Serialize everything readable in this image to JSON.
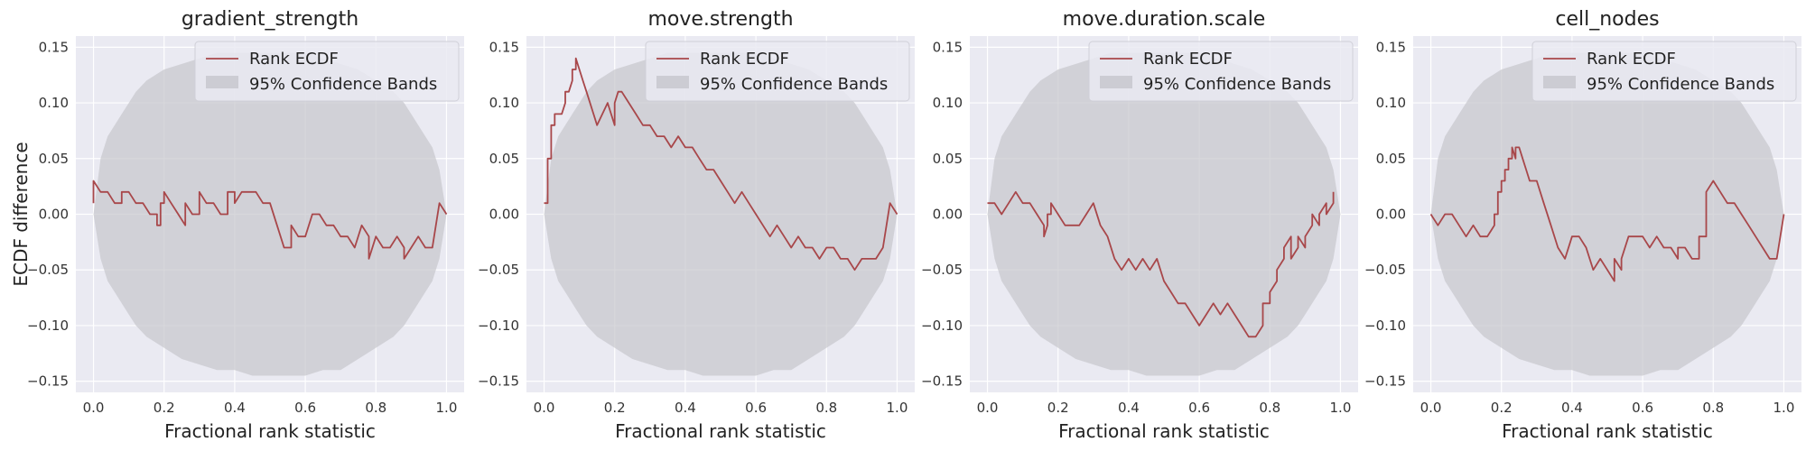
{
  "colors": {
    "panel_bg": "#eaeaf2",
    "grid": "#ffffff",
    "band": "#c6c6cc",
    "line": "#a8474a",
    "legend_bg": "#eaeaf2"
  },
  "legend": {
    "line_label": "Rank ECDF",
    "band_label": "95% Confidence Bands"
  },
  "chart_data": [
    {
      "type": "line",
      "title": "gradient_strength",
      "xlabel": "Fractional rank statistic",
      "ylabel": "ECDF difference",
      "xlim": [
        -0.05,
        1.05
      ],
      "ylim": [
        -0.16,
        0.16
      ],
      "xticks": [
        "0.0",
        "0.2",
        "0.4",
        "0.6",
        "0.8",
        "1.0"
      ],
      "yticks": [
        "−0.15",
        "−0.10",
        "−0.05",
        "0.00",
        "0.05",
        "0.10",
        "0.15"
      ],
      "grid": true,
      "legend_position": "upper-right",
      "series": [
        {
          "name": "Rank ECDF",
          "x": [
            0.0,
            0.0,
            0.02,
            0.04,
            0.06,
            0.08,
            0.08,
            0.1,
            0.12,
            0.14,
            0.16,
            0.18,
            0.18,
            0.19,
            0.19,
            0.2,
            0.2,
            0.22,
            0.24,
            0.26,
            0.26,
            0.28,
            0.3,
            0.3,
            0.32,
            0.34,
            0.36,
            0.38,
            0.38,
            0.4,
            0.4,
            0.42,
            0.44,
            0.46,
            0.48,
            0.5,
            0.52,
            0.54,
            0.56,
            0.56,
            0.58,
            0.6,
            0.62,
            0.64,
            0.66,
            0.68,
            0.68,
            0.7,
            0.72,
            0.74,
            0.76,
            0.78,
            0.78,
            0.8,
            0.82,
            0.84,
            0.86,
            0.88,
            0.88,
            0.9,
            0.92,
            0.94,
            0.96,
            0.96,
            0.98,
            1.0
          ],
          "y": [
            0.01,
            0.03,
            0.02,
            0.02,
            0.01,
            0.01,
            0.02,
            0.02,
            0.01,
            0.01,
            0.0,
            0.0,
            -0.01,
            -0.01,
            0.01,
            0.01,
            0.02,
            0.01,
            0.0,
            -0.01,
            0.01,
            0.0,
            0.0,
            0.02,
            0.01,
            0.01,
            0.0,
            0.0,
            0.02,
            0.02,
            0.01,
            0.02,
            0.02,
            0.02,
            0.01,
            0.01,
            -0.01,
            -0.03,
            -0.03,
            -0.01,
            -0.02,
            -0.02,
            0.0,
            0.0,
            -0.01,
            -0.01,
            -0.01,
            -0.02,
            -0.02,
            -0.03,
            -0.01,
            -0.02,
            -0.04,
            -0.02,
            -0.03,
            -0.03,
            -0.02,
            -0.03,
            -0.04,
            -0.03,
            -0.02,
            -0.03,
            -0.03,
            -0.03,
            0.01,
            0.0
          ]
        }
      ],
      "band": {
        "name": "95% Confidence Bands",
        "x": [
          0.0,
          0.02,
          0.04,
          0.06,
          0.08,
          0.1,
          0.12,
          0.15,
          0.2,
          0.25,
          0.3,
          0.35,
          0.4,
          0.45,
          0.5,
          0.55,
          0.6,
          0.65,
          0.7,
          0.75,
          0.8,
          0.85,
          0.88,
          0.9,
          0.92,
          0.94,
          0.96,
          0.98,
          1.0
        ],
        "upper": [
          0.0,
          0.05,
          0.07,
          0.08,
          0.09,
          0.1,
          0.11,
          0.12,
          0.13,
          0.135,
          0.14,
          0.145,
          0.145,
          0.145,
          0.145,
          0.145,
          0.145,
          0.14,
          0.135,
          0.13,
          0.12,
          0.11,
          0.1,
          0.09,
          0.08,
          0.07,
          0.06,
          0.04,
          0.0
        ],
        "lower": [
          0.0,
          -0.04,
          -0.06,
          -0.07,
          -0.08,
          -0.09,
          -0.1,
          -0.11,
          -0.12,
          -0.13,
          -0.135,
          -0.14,
          -0.14,
          -0.145,
          -0.145,
          -0.145,
          -0.145,
          -0.14,
          -0.14,
          -0.13,
          -0.12,
          -0.11,
          -0.1,
          -0.09,
          -0.08,
          -0.07,
          -0.06,
          -0.04,
          0.0
        ]
      }
    },
    {
      "type": "line",
      "title": "move.strength",
      "xlabel": "Fractional rank statistic",
      "ylabel": "",
      "xlim": [
        -0.05,
        1.05
      ],
      "ylim": [
        -0.16,
        0.16
      ],
      "xticks": [
        "0.0",
        "0.2",
        "0.4",
        "0.6",
        "0.8",
        "1.0"
      ],
      "yticks": [
        "−0.15",
        "−0.10",
        "−0.05",
        "0.00",
        "0.05",
        "0.10",
        "0.15"
      ],
      "grid": true,
      "legend_position": "upper-right",
      "series": [
        {
          "name": "Rank ECDF",
          "x": [
            0.0,
            0.01,
            0.01,
            0.02,
            0.02,
            0.03,
            0.03,
            0.04,
            0.04,
            0.05,
            0.06,
            0.06,
            0.07,
            0.08,
            0.08,
            0.09,
            0.09,
            0.1,
            0.11,
            0.12,
            0.15,
            0.18,
            0.2,
            0.2,
            0.21,
            0.22,
            0.24,
            0.26,
            0.28,
            0.3,
            0.32,
            0.34,
            0.36,
            0.38,
            0.4,
            0.42,
            0.44,
            0.46,
            0.48,
            0.5,
            0.52,
            0.54,
            0.56,
            0.58,
            0.6,
            0.62,
            0.64,
            0.66,
            0.68,
            0.7,
            0.72,
            0.74,
            0.76,
            0.78,
            0.8,
            0.82,
            0.84,
            0.86,
            0.88,
            0.9,
            0.92,
            0.94,
            0.96,
            0.98,
            1.0
          ],
          "y": [
            0.01,
            0.01,
            0.05,
            0.05,
            0.08,
            0.08,
            0.09,
            0.09,
            0.09,
            0.09,
            0.1,
            0.11,
            0.11,
            0.12,
            0.13,
            0.13,
            0.14,
            0.13,
            0.12,
            0.11,
            0.08,
            0.1,
            0.08,
            0.1,
            0.11,
            0.11,
            0.1,
            0.09,
            0.08,
            0.08,
            0.07,
            0.07,
            0.06,
            0.07,
            0.06,
            0.06,
            0.05,
            0.04,
            0.04,
            0.03,
            0.02,
            0.01,
            0.02,
            0.01,
            0.0,
            -0.01,
            -0.02,
            -0.01,
            -0.02,
            -0.03,
            -0.02,
            -0.03,
            -0.03,
            -0.04,
            -0.03,
            -0.03,
            -0.04,
            -0.04,
            -0.05,
            -0.04,
            -0.04,
            -0.04,
            -0.03,
            0.01,
            0.0
          ]
        }
      ],
      "band": {
        "name": "95% Confidence Bands",
        "x": [
          0.0,
          0.02,
          0.04,
          0.06,
          0.08,
          0.1,
          0.12,
          0.15,
          0.2,
          0.25,
          0.3,
          0.35,
          0.4,
          0.45,
          0.5,
          0.55,
          0.6,
          0.65,
          0.7,
          0.75,
          0.8,
          0.85,
          0.88,
          0.9,
          0.92,
          0.94,
          0.96,
          0.98,
          1.0
        ],
        "upper": [
          0.0,
          0.05,
          0.07,
          0.08,
          0.09,
          0.1,
          0.11,
          0.12,
          0.13,
          0.135,
          0.14,
          0.145,
          0.145,
          0.145,
          0.145,
          0.145,
          0.145,
          0.14,
          0.135,
          0.13,
          0.12,
          0.11,
          0.1,
          0.09,
          0.08,
          0.07,
          0.06,
          0.04,
          0.0
        ],
        "lower": [
          0.0,
          -0.04,
          -0.06,
          -0.07,
          -0.08,
          -0.09,
          -0.1,
          -0.11,
          -0.12,
          -0.13,
          -0.135,
          -0.14,
          -0.14,
          -0.145,
          -0.145,
          -0.145,
          -0.145,
          -0.14,
          -0.14,
          -0.13,
          -0.12,
          -0.11,
          -0.1,
          -0.09,
          -0.08,
          -0.07,
          -0.06,
          -0.04,
          0.0
        ]
      }
    },
    {
      "type": "line",
      "title": "move.duration.scale",
      "xlabel": "Fractional rank statistic",
      "ylabel": "",
      "xlim": [
        -0.05,
        1.05
      ],
      "ylim": [
        -0.16,
        0.16
      ],
      "xticks": [
        "0.0",
        "0.2",
        "0.4",
        "0.6",
        "0.8",
        "1.0"
      ],
      "yticks": [
        "−0.15",
        "−0.10",
        "−0.05",
        "0.00",
        "0.05",
        "0.10",
        "0.15"
      ],
      "grid": true,
      "legend_position": "upper-right",
      "series": [
        {
          "name": "Rank ECDF",
          "x": [
            0.0,
            0.02,
            0.04,
            0.06,
            0.06,
            0.08,
            0.1,
            0.12,
            0.14,
            0.16,
            0.16,
            0.17,
            0.17,
            0.18,
            0.18,
            0.2,
            0.22,
            0.24,
            0.26,
            0.28,
            0.3,
            0.32,
            0.34,
            0.36,
            0.38,
            0.4,
            0.42,
            0.44,
            0.46,
            0.48,
            0.5,
            0.52,
            0.54,
            0.56,
            0.58,
            0.6,
            0.62,
            0.64,
            0.66,
            0.68,
            0.7,
            0.72,
            0.74,
            0.76,
            0.78,
            0.78,
            0.8,
            0.8,
            0.82,
            0.82,
            0.84,
            0.84,
            0.86,
            0.86,
            0.88,
            0.88,
            0.9,
            0.9,
            0.92,
            0.92,
            0.94,
            0.94,
            0.96,
            0.96,
            0.98,
            0.98
          ],
          "y": [
            0.01,
            0.01,
            0.0,
            0.01,
            0.01,
            0.02,
            0.01,
            0.01,
            0.0,
            -0.01,
            -0.02,
            -0.01,
            0.0,
            0.0,
            0.01,
            0.0,
            -0.01,
            -0.01,
            -0.01,
            0.0,
            0.01,
            -0.01,
            -0.02,
            -0.04,
            -0.05,
            -0.04,
            -0.05,
            -0.04,
            -0.05,
            -0.04,
            -0.06,
            -0.07,
            -0.08,
            -0.08,
            -0.09,
            -0.1,
            -0.09,
            -0.08,
            -0.09,
            -0.08,
            -0.09,
            -0.1,
            -0.11,
            -0.11,
            -0.1,
            -0.08,
            -0.08,
            -0.07,
            -0.06,
            -0.05,
            -0.04,
            -0.03,
            -0.02,
            -0.04,
            -0.03,
            -0.02,
            -0.03,
            -0.02,
            -0.01,
            0.0,
            -0.01,
            0.0,
            0.01,
            0.0,
            0.01,
            0.02
          ]
        }
      ],
      "band": {
        "name": "95% Confidence Bands",
        "x": [
          0.0,
          0.02,
          0.04,
          0.06,
          0.08,
          0.1,
          0.12,
          0.15,
          0.2,
          0.25,
          0.3,
          0.35,
          0.4,
          0.45,
          0.5,
          0.55,
          0.6,
          0.65,
          0.7,
          0.75,
          0.8,
          0.85,
          0.88,
          0.9,
          0.92,
          0.94,
          0.96,
          0.98,
          1.0
        ],
        "upper": [
          0.0,
          0.05,
          0.07,
          0.08,
          0.09,
          0.1,
          0.11,
          0.12,
          0.13,
          0.135,
          0.14,
          0.145,
          0.145,
          0.145,
          0.145,
          0.145,
          0.145,
          0.14,
          0.135,
          0.13,
          0.12,
          0.11,
          0.1,
          0.09,
          0.08,
          0.07,
          0.06,
          0.04,
          0.0
        ],
        "lower": [
          0.0,
          -0.04,
          -0.06,
          -0.07,
          -0.08,
          -0.09,
          -0.1,
          -0.11,
          -0.12,
          -0.13,
          -0.135,
          -0.14,
          -0.14,
          -0.145,
          -0.145,
          -0.145,
          -0.145,
          -0.14,
          -0.14,
          -0.13,
          -0.12,
          -0.11,
          -0.1,
          -0.09,
          -0.08,
          -0.07,
          -0.06,
          -0.04,
          0.0
        ]
      }
    },
    {
      "type": "line",
      "title": "cell_nodes",
      "xlabel": "Fractional rank statistic",
      "ylabel": "",
      "xlim": [
        -0.05,
        1.05
      ],
      "ylim": [
        -0.16,
        0.16
      ],
      "xticks": [
        "0.0",
        "0.2",
        "0.4",
        "0.6",
        "0.8",
        "1.0"
      ],
      "yticks": [
        "−0.15",
        "−0.10",
        "−0.05",
        "0.00",
        "0.05",
        "0.10",
        "0.15"
      ],
      "grid": true,
      "legend_position": "upper-right",
      "series": [
        {
          "name": "Rank ECDF",
          "x": [
            0.0,
            0.02,
            0.04,
            0.06,
            0.08,
            0.1,
            0.12,
            0.14,
            0.16,
            0.18,
            0.18,
            0.19,
            0.19,
            0.2,
            0.2,
            0.21,
            0.21,
            0.22,
            0.22,
            0.23,
            0.23,
            0.24,
            0.24,
            0.25,
            0.26,
            0.27,
            0.28,
            0.3,
            0.32,
            0.34,
            0.36,
            0.38,
            0.4,
            0.42,
            0.44,
            0.46,
            0.48,
            0.5,
            0.52,
            0.52,
            0.54,
            0.54,
            0.56,
            0.58,
            0.6,
            0.62,
            0.64,
            0.66,
            0.68,
            0.7,
            0.7,
            0.72,
            0.74,
            0.76,
            0.76,
            0.78,
            0.78,
            0.8,
            0.82,
            0.84,
            0.86,
            0.88,
            0.9,
            0.92,
            0.94,
            0.96,
            0.98,
            1.0
          ],
          "y": [
            0.0,
            -0.01,
            0.0,
            0.0,
            -0.01,
            -0.02,
            -0.01,
            -0.02,
            -0.02,
            -0.01,
            0.0,
            0.0,
            0.02,
            0.02,
            0.03,
            0.03,
            0.04,
            0.04,
            0.05,
            0.05,
            0.06,
            0.05,
            0.06,
            0.06,
            0.05,
            0.04,
            0.03,
            0.03,
            0.01,
            -0.01,
            -0.03,
            -0.04,
            -0.02,
            -0.02,
            -0.03,
            -0.05,
            -0.04,
            -0.05,
            -0.06,
            -0.04,
            -0.05,
            -0.04,
            -0.02,
            -0.02,
            -0.02,
            -0.03,
            -0.02,
            -0.03,
            -0.03,
            -0.04,
            -0.03,
            -0.03,
            -0.04,
            -0.04,
            -0.02,
            -0.02,
            0.02,
            0.03,
            0.02,
            0.01,
            0.01,
            0.0,
            -0.01,
            -0.02,
            -0.03,
            -0.04,
            -0.04,
            0.0
          ]
        }
      ],
      "band": {
        "name": "95% Confidence Bands",
        "x": [
          0.0,
          0.02,
          0.04,
          0.06,
          0.08,
          0.1,
          0.12,
          0.15,
          0.2,
          0.25,
          0.3,
          0.35,
          0.4,
          0.45,
          0.5,
          0.55,
          0.6,
          0.65,
          0.7,
          0.75,
          0.8,
          0.85,
          0.88,
          0.9,
          0.92,
          0.94,
          0.96,
          0.98,
          1.0
        ],
        "upper": [
          0.0,
          0.05,
          0.07,
          0.08,
          0.09,
          0.1,
          0.11,
          0.12,
          0.13,
          0.135,
          0.14,
          0.145,
          0.145,
          0.145,
          0.145,
          0.145,
          0.145,
          0.14,
          0.135,
          0.13,
          0.12,
          0.11,
          0.1,
          0.09,
          0.08,
          0.07,
          0.06,
          0.04,
          0.0
        ],
        "lower": [
          0.0,
          -0.04,
          -0.06,
          -0.07,
          -0.08,
          -0.09,
          -0.1,
          -0.11,
          -0.12,
          -0.13,
          -0.135,
          -0.14,
          -0.14,
          -0.145,
          -0.145,
          -0.145,
          -0.145,
          -0.14,
          -0.14,
          -0.13,
          -0.12,
          -0.11,
          -0.1,
          -0.09,
          -0.08,
          -0.07,
          -0.06,
          -0.04,
          0.0
        ]
      }
    }
  ]
}
